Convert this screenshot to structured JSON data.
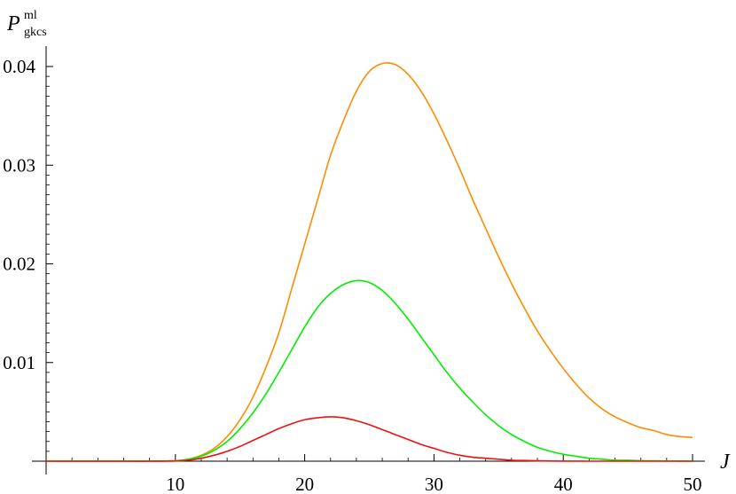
{
  "chart_data": {
    "type": "line",
    "xlabel": "J",
    "ylabel": {
      "main": "P",
      "superscript": "ml",
      "subscript": "gkcs"
    },
    "xlim": [
      0,
      50
    ],
    "ylim": [
      0,
      0.04
    ],
    "x_ticks": [
      10,
      20,
      30,
      40,
      50
    ],
    "y_ticks": [
      0.01,
      0.02,
      0.03,
      0.04
    ],
    "x_tick_labels": [
      "10",
      "20",
      "30",
      "40",
      "50"
    ],
    "y_tick_labels": [
      "0.01",
      "0.02",
      "0.03",
      "0.04"
    ],
    "grid": false,
    "legend": "none",
    "x": [
      0,
      2,
      4,
      6,
      8,
      10,
      11,
      12,
      13,
      14,
      15,
      16,
      17,
      18,
      19,
      20,
      21,
      22,
      23,
      24,
      25,
      26,
      27,
      28,
      29,
      30,
      31,
      32,
      33,
      34,
      35,
      36,
      37,
      38,
      39,
      40,
      41,
      42,
      43,
      44,
      45,
      46,
      47,
      48,
      49,
      50
    ],
    "series": [
      {
        "color": "#ff8c00",
        "values": [
          0,
          0,
          0,
          0,
          0,
          5e-05,
          0.0002,
          0.0006,
          0.0013,
          0.0025,
          0.0042,
          0.0065,
          0.0095,
          0.013,
          0.0175,
          0.022,
          0.0265,
          0.031,
          0.0345,
          0.0375,
          0.0395,
          0.0403,
          0.0402,
          0.0392,
          0.0375,
          0.0352,
          0.0325,
          0.0296,
          0.0265,
          0.0236,
          0.0207,
          0.018,
          0.0155,
          0.0132,
          0.0112,
          0.0094,
          0.0078,
          0.0064,
          0.0053,
          0.0045,
          0.0039,
          0.0034,
          0.0031,
          0.0027,
          0.0025,
          0.0024
        ]
      },
      {
        "color": "#00ee00",
        "values": [
          0,
          0,
          0,
          0,
          0,
          5e-05,
          0.0002,
          0.0005,
          0.0011,
          0.002,
          0.0033,
          0.0049,
          0.0068,
          0.009,
          0.0113,
          0.0136,
          0.0156,
          0.017,
          0.0179,
          0.0183,
          0.0181,
          0.0173,
          0.016,
          0.0144,
          0.0126,
          0.0108,
          0.009,
          0.0074,
          0.006,
          0.0047,
          0.0036,
          0.0027,
          0.002,
          0.0014,
          0.001,
          0.0007,
          0.0005,
          0.0003,
          0.0002,
          0.0001,
          0.0001,
          5e-05,
          4e-05,
          2e-05,
          1e-05,
          1e-05
        ]
      },
      {
        "color": "#ee1111",
        "values": [
          0,
          0,
          0,
          0,
          0,
          2e-05,
          0.0001,
          0.0003,
          0.0006,
          0.001,
          0.0015,
          0.0021,
          0.0027,
          0.0033,
          0.0038,
          0.0042,
          0.0044,
          0.0045,
          0.0044,
          0.0041,
          0.0037,
          0.0032,
          0.0027,
          0.0022,
          0.0017,
          0.0013,
          0.0009,
          0.0006,
          0.0004,
          0.0003,
          0.0002,
          0.0001,
          7e-05,
          4e-05,
          2e-05,
          1e-05,
          1e-05,
          0,
          0,
          0,
          0,
          0,
          0,
          0,
          0,
          0
        ]
      }
    ]
  }
}
